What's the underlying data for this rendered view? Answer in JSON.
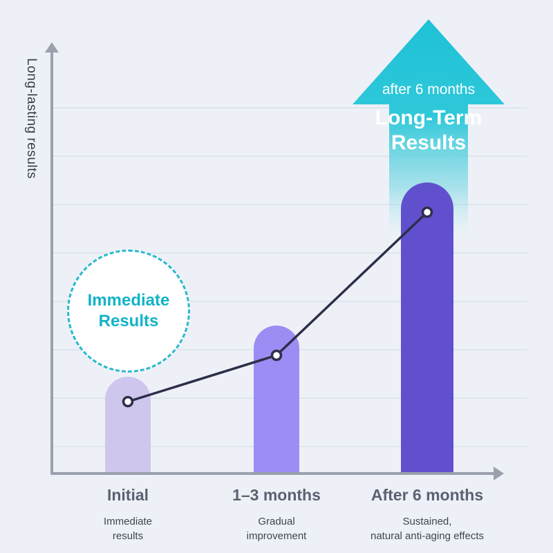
{
  "background": "#edf1f7",
  "chart_data": {
    "type": "bar",
    "title": "",
    "ylabel": "Long-lasting results",
    "xlabel": "",
    "categories": [
      "Initial",
      "1–3 months",
      "After 6 months"
    ],
    "sublabels": [
      [
        "Immediate",
        "results"
      ],
      [
        "Gradual",
        "improvement"
      ],
      [
        "Sustained,",
        "natural anti-aging effects"
      ]
    ],
    "values": [
      23,
      35,
      69
    ],
    "ylim": [
      0,
      100
    ],
    "grid": true,
    "legend": false,
    "bar_colors": [
      "#cfc6ee",
      "#9b8df3",
      "#6150ce"
    ],
    "series": [
      {
        "name": "results-trend",
        "type": "line",
        "values": [
          17,
          28,
          62
        ],
        "color": "#2e2e49"
      }
    ],
    "annotations": [
      {
        "id": "immediate-results-badge",
        "lines": [
          "Immediate",
          "Results"
        ],
        "color": "#12b3c7"
      },
      {
        "id": "long-term-arrow",
        "small": "after 6 months",
        "lines": [
          "Long-Term",
          "Results"
        ],
        "color": "#27c3d6"
      }
    ]
  }
}
